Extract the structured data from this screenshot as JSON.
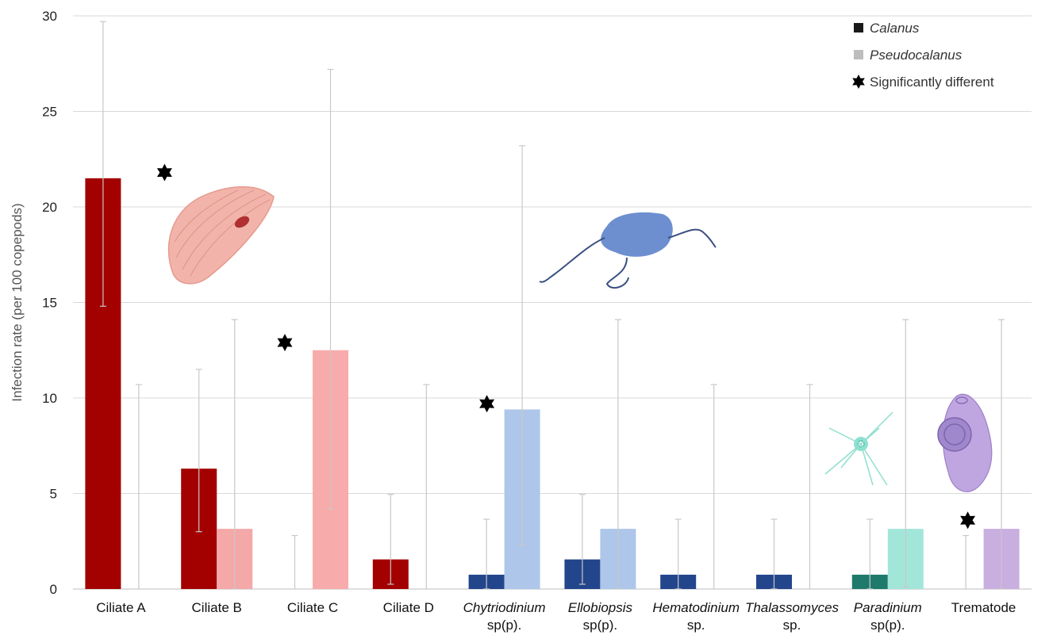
{
  "chart_data": {
    "type": "bar",
    "ylabel": "Infection rate (per 100 copepods)",
    "ylim": [
      0,
      30
    ],
    "yticks": [
      0,
      5,
      10,
      15,
      20,
      25,
      30
    ],
    "grid": true,
    "legend_position": "top-right",
    "categories": [
      {
        "line1": "Ciliate A",
        "line2": "",
        "italic": false
      },
      {
        "line1": "Ciliate B",
        "line2": "",
        "italic": false
      },
      {
        "line1": "Ciliate C",
        "line2": "",
        "italic": false
      },
      {
        "line1": "Ciliate D",
        "line2": "",
        "italic": false
      },
      {
        "line1": "Chytriodinium",
        "line2": "sp(p).",
        "italic": true
      },
      {
        "line1": "Ellobiopsis",
        "line2": "sp(p).",
        "italic": true
      },
      {
        "line1": "Hematodinium",
        "line2": "sp.",
        "italic": true
      },
      {
        "line1": "Thalassomyces",
        "line2": "sp.",
        "italic": true
      },
      {
        "line1": "Paradinium",
        "line2": "sp(p).",
        "italic": true
      },
      {
        "line1": "Trematode",
        "line2": "",
        "italic": false
      }
    ],
    "series": [
      {
        "name": "Calanus",
        "values": [
          21.5,
          6.3,
          0,
          1.55,
          0.75,
          1.55,
          0.75,
          0.75,
          0.75,
          0
        ],
        "error_low": [
          14.8,
          3.0,
          0,
          0.25,
          0.0,
          0.25,
          0.0,
          0.0,
          0.0,
          0
        ],
        "error_high": [
          29.7,
          11.5,
          2.8,
          4.95,
          3.65,
          4.95,
          3.65,
          3.65,
          3.65,
          2.8
        ],
        "colors": [
          "#a30000",
          "#a30000",
          "#a30000",
          "#a30000",
          "#23458c",
          "#23458c",
          "#23458c",
          "#23458c",
          "#1e7a6a",
          "#8e6bb0"
        ]
      },
      {
        "name": "Pseudocalanus",
        "values": [
          0,
          3.15,
          12.5,
          0,
          9.4,
          3.15,
          0,
          0,
          3.15,
          3.15
        ],
        "error_low": [
          0,
          0.0,
          4.2,
          0,
          2.3,
          0.0,
          0,
          0,
          0.1,
          0.0
        ],
        "error_high": [
          10.7,
          14.1,
          27.2,
          10.7,
          23.2,
          14.1,
          10.7,
          10.7,
          14.1,
          14.1
        ],
        "colors": [
          "#f4a8a8",
          "#f4a8a8",
          "#f8abab",
          "#f4a8a8",
          "#aec6ea",
          "#aec6ea",
          "#aec6ea",
          "#aec6ea",
          "#a2e6d9",
          "#c9aee0"
        ]
      }
    ],
    "significance_markers": [
      {
        "category": 0,
        "y": 21.8
      },
      {
        "category": 2,
        "y": 12.9
      },
      {
        "category": 4,
        "y": 9.7
      },
      {
        "category": 9,
        "y": 3.6
      }
    ],
    "legend": [
      {
        "label": "Calanus",
        "italic": true,
        "color": "#1a1a1a",
        "marker": "square"
      },
      {
        "label": "Pseudocalanus",
        "italic": true,
        "color": "#bdbdbd",
        "marker": "square"
      },
      {
        "label": "Significantly different",
        "italic": false,
        "color": "#000000",
        "marker": "star"
      }
    ]
  }
}
